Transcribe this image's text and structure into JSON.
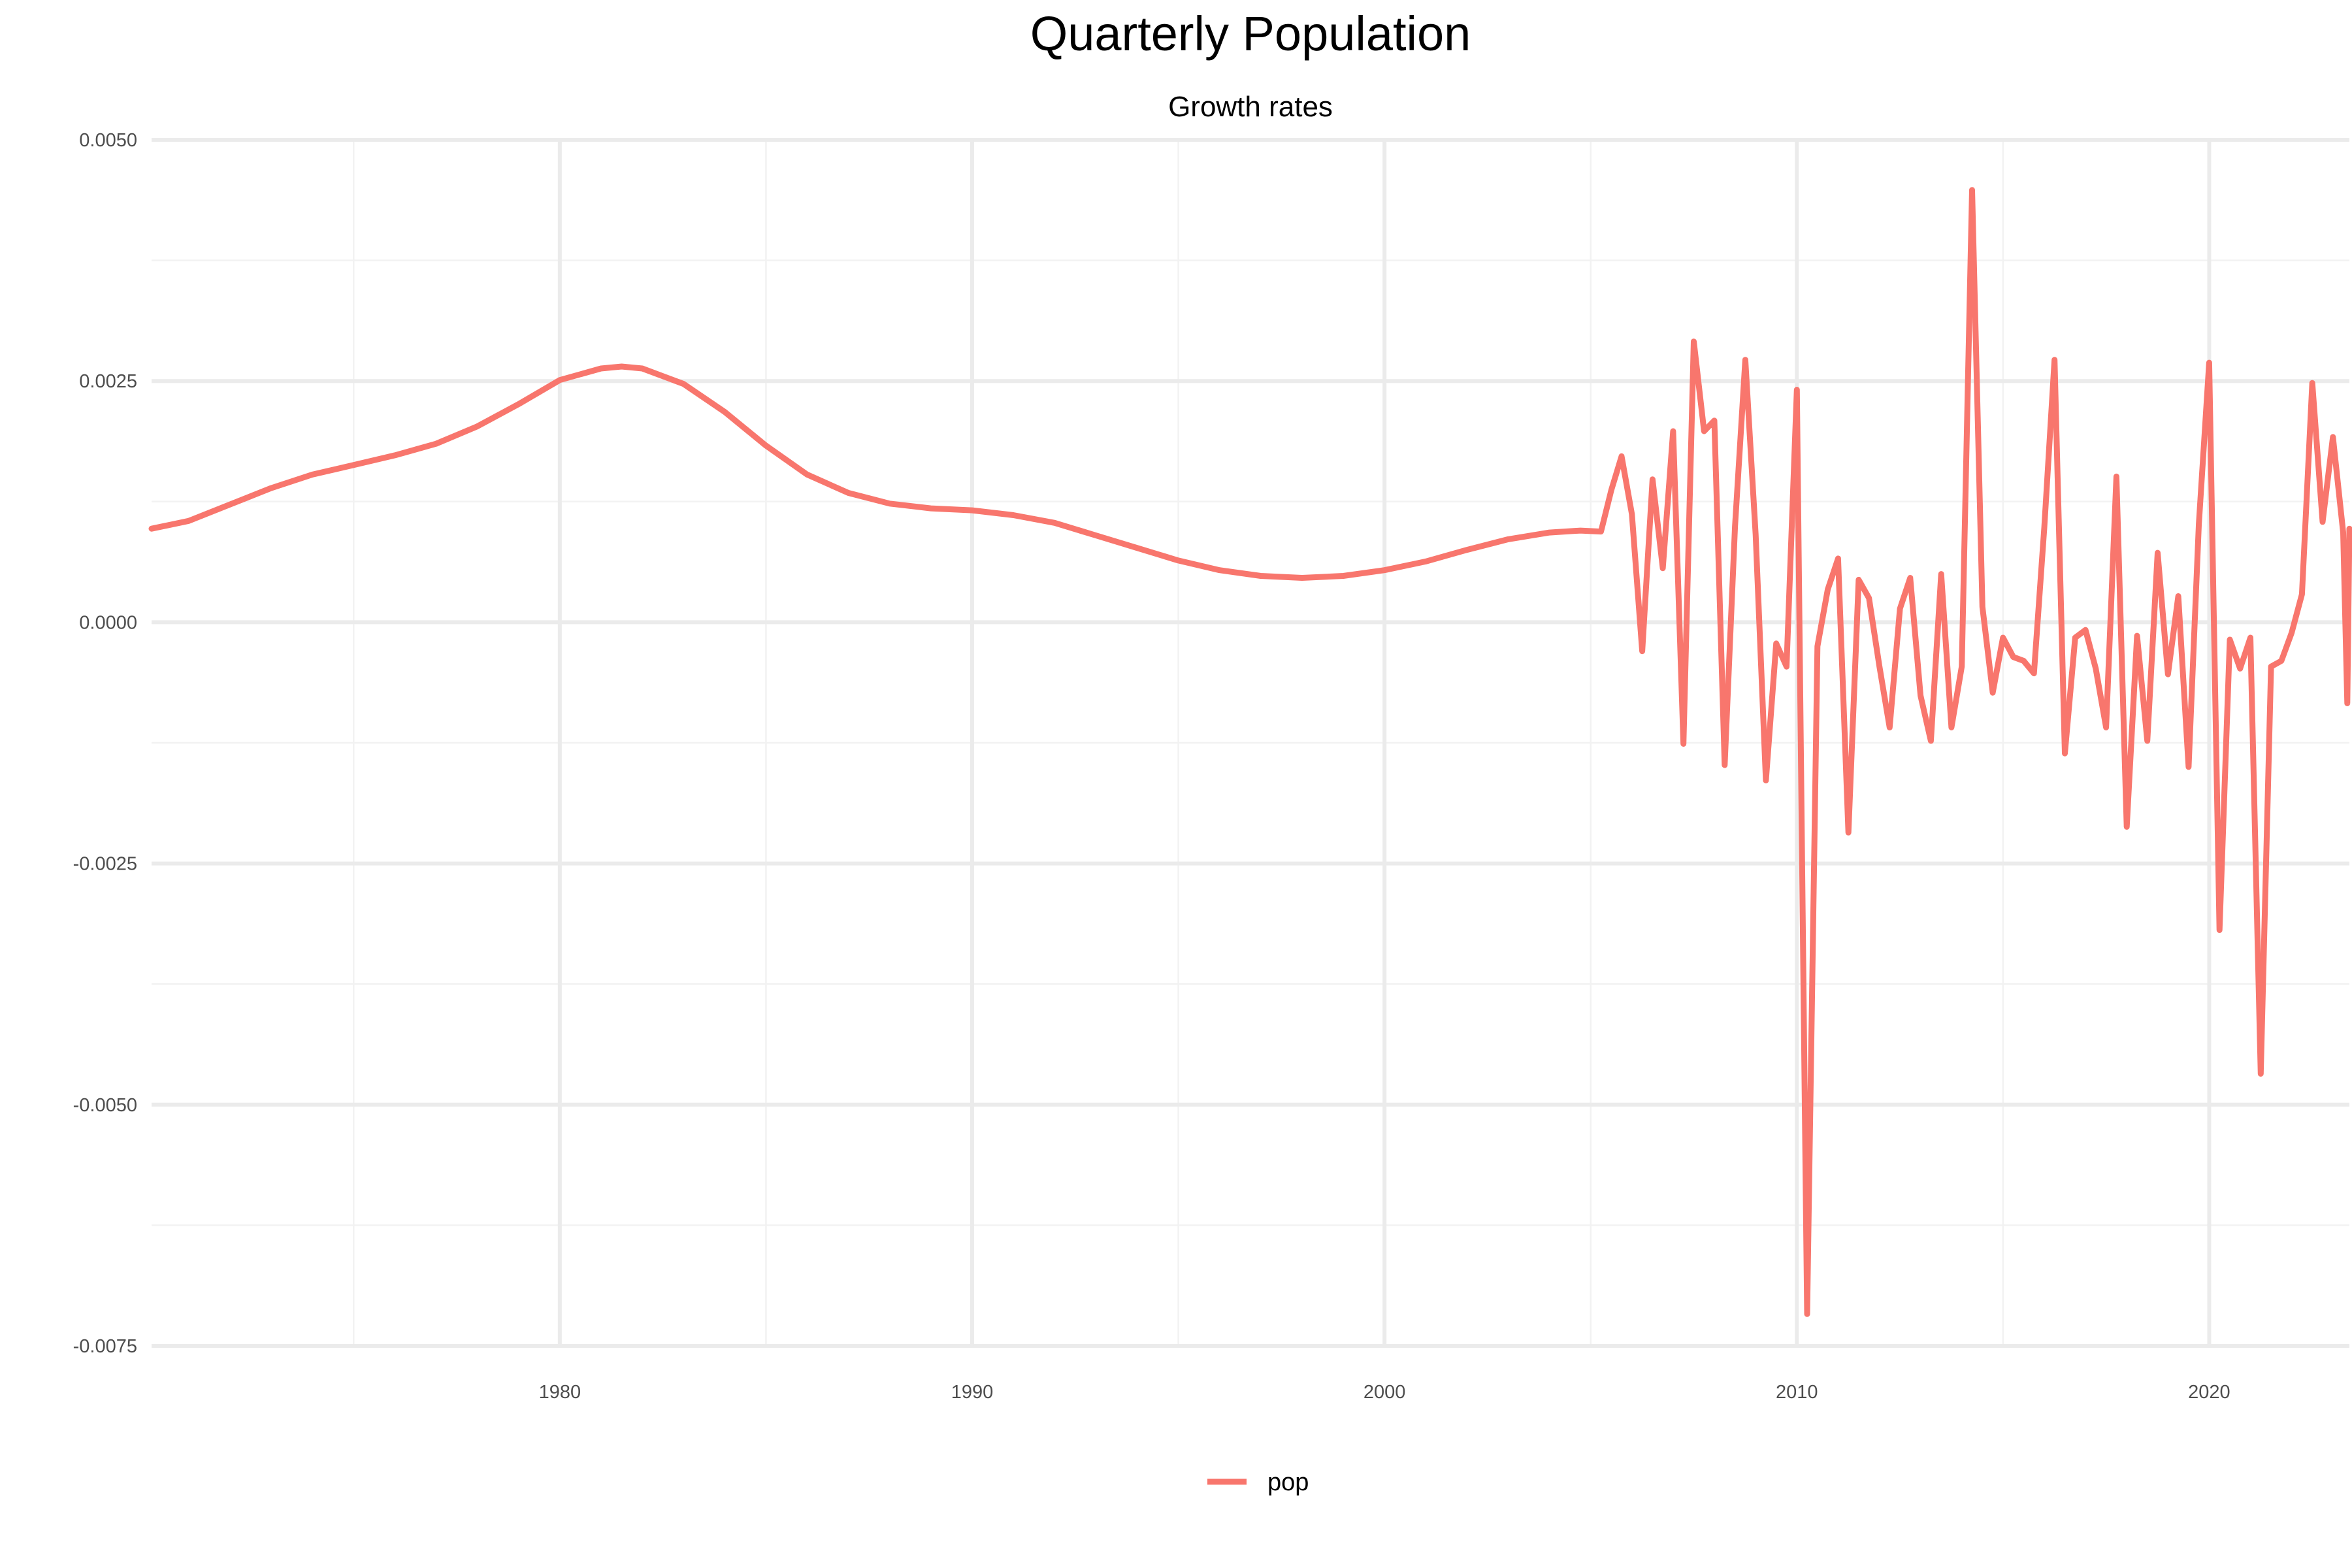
{
  "chart_data": {
    "type": "line",
    "title": "Quarterly Population",
    "subtitle": "Growth rates",
    "xlabel": "",
    "ylabel": "",
    "xlim": [
      1970.1,
      2023.4
    ],
    "ylim": [
      -0.0075,
      0.005
    ],
    "x_ticks": [
      {
        "value": 1980,
        "label": "1980"
      },
      {
        "value": 1990,
        "label": "1990"
      },
      {
        "value": 2000,
        "label": "2000"
      },
      {
        "value": 2010,
        "label": "2010"
      },
      {
        "value": 2020,
        "label": "2020"
      }
    ],
    "x_minor": [
      1975,
      1985,
      1995,
      2005,
      2015
    ],
    "y_ticks": [
      {
        "value": 0.005,
        "label": "0.0050"
      },
      {
        "value": 0.0025,
        "label": "0.0025"
      },
      {
        "value": 0.0,
        "label": "0.0000"
      },
      {
        "value": -0.0025,
        "label": "-0.0025"
      },
      {
        "value": -0.005,
        "label": "-0.0050"
      },
      {
        "value": -0.0075,
        "label": "-0.0075"
      }
    ],
    "y_minor": [
      0.00375,
      0.00125,
      -0.00125,
      -0.00375,
      -0.00625
    ],
    "grid": true,
    "legend": {
      "position": "bottom",
      "entries": [
        "pop"
      ]
    },
    "colors": {
      "pop": "#F8766D",
      "grid_major": "#EBEBEB",
      "grid_minor": "#F2F2F2"
    },
    "series": [
      {
        "name": "pop",
        "color": "#F8766D",
        "points": [
          [
            1970.1,
            0.00097
          ],
          [
            1971.0,
            0.00105
          ],
          [
            1972.0,
            0.00122
          ],
          [
            1973.0,
            0.00139
          ],
          [
            1974.0,
            0.00153
          ],
          [
            1975.0,
            0.00163
          ],
          [
            1976.0,
            0.00173
          ],
          [
            1977.0,
            0.00185
          ],
          [
            1978.0,
            0.00203
          ],
          [
            1979.0,
            0.00226
          ],
          [
            1980.0,
            0.00251
          ],
          [
            1981.0,
            0.00263
          ],
          [
            1981.5,
            0.00265
          ],
          [
            1982.0,
            0.00263
          ],
          [
            1983.0,
            0.00247
          ],
          [
            1984.0,
            0.00218
          ],
          [
            1985.0,
            0.00183
          ],
          [
            1986.0,
            0.00153
          ],
          [
            1987.0,
            0.00134
          ],
          [
            1988.0,
            0.00123
          ],
          [
            1989.0,
            0.00118
          ],
          [
            1990.0,
            0.00116
          ],
          [
            1991.0,
            0.00111
          ],
          [
            1992.0,
            0.00103
          ],
          [
            1993.0,
            0.0009
          ],
          [
            1994.0,
            0.00077
          ],
          [
            1995.0,
            0.00064
          ],
          [
            1996.0,
            0.00054
          ],
          [
            1997.0,
            0.00048
          ],
          [
            1998.0,
            0.00046
          ],
          [
            1999.0,
            0.00048
          ],
          [
            2000.0,
            0.00054
          ],
          [
            2001.0,
            0.00063
          ],
          [
            2002.0,
            0.00075
          ],
          [
            2003.0,
            0.00086
          ],
          [
            2004.0,
            0.00093
          ],
          [
            2004.75,
            0.00095
          ],
          [
            2005.25,
            0.00094
          ],
          [
            2005.5,
            0.00137
          ],
          [
            2005.75,
            0.00172
          ],
          [
            2006.0,
            0.00112
          ],
          [
            2006.25,
            -0.0003
          ],
          [
            2006.5,
            0.00148
          ],
          [
            2006.75,
            0.00056
          ],
          [
            2007.0,
            0.00198
          ],
          [
            2007.25,
            -0.00126
          ],
          [
            2007.5,
            0.00291
          ],
          [
            2007.75,
            0.00198
          ],
          [
            2008.0,
            0.00209
          ],
          [
            2008.25,
            -0.00148
          ],
          [
            2008.5,
            0.00099
          ],
          [
            2008.75,
            0.00272
          ],
          [
            2009.0,
            0.00091
          ],
          [
            2009.25,
            -0.00164
          ],
          [
            2009.5,
            -0.00022
          ],
          [
            2009.75,
            -0.00046
          ],
          [
            2010.0,
            0.00241
          ],
          [
            2010.25,
            -0.00717
          ],
          [
            2010.5,
            -0.00025
          ],
          [
            2010.75,
            0.00034
          ],
          [
            2011.0,
            0.00066
          ],
          [
            2011.25,
            -0.00218
          ],
          [
            2011.5,
            0.00044
          ],
          [
            2011.75,
            0.00025
          ],
          [
            2012.0,
            -0.00045
          ],
          [
            2012.25,
            -0.00109
          ],
          [
            2012.5,
            0.00014
          ],
          [
            2012.75,
            0.00046
          ],
          [
            2013.0,
            -0.00076
          ],
          [
            2013.25,
            -0.00123
          ],
          [
            2013.5,
            0.0005
          ],
          [
            2013.75,
            -0.00109
          ],
          [
            2014.0,
            -0.00046
          ],
          [
            2014.25,
            0.00448
          ],
          [
            2014.5,
            0.00016
          ],
          [
            2014.75,
            -0.00073
          ],
          [
            2015.0,
            -0.00016
          ],
          [
            2015.25,
            -0.00036
          ],
          [
            2015.5,
            -0.0004
          ],
          [
            2015.75,
            -0.00053
          ],
          [
            2016.0,
            0.00098
          ],
          [
            2016.25,
            0.00272
          ],
          [
            2016.5,
            -0.00136
          ],
          [
            2016.75,
            -0.00016
          ],
          [
            2017.0,
            -8e-05
          ],
          [
            2017.25,
            -0.00048
          ],
          [
            2017.5,
            -0.00109
          ],
          [
            2017.75,
            0.00151
          ],
          [
            2018.0,
            -0.00212
          ],
          [
            2018.25,
            -0.00014
          ],
          [
            2018.5,
            -0.00123
          ],
          [
            2018.75,
            0.00072
          ],
          [
            2019.0,
            -0.00054
          ],
          [
            2019.25,
            0.00027
          ],
          [
            2019.5,
            -0.0015
          ],
          [
            2019.75,
            0.00102
          ],
          [
            2020.0,
            0.00269
          ],
          [
            2020.25,
            -0.00319
          ],
          [
            2020.5,
            -0.00018
          ],
          [
            2020.75,
            -0.00048
          ],
          [
            2021.0,
            -0.00016
          ],
          [
            2021.25,
            -0.00468
          ],
          [
            2021.5,
            -0.00046
          ],
          [
            2021.75,
            -0.0004
          ],
          [
            2022.0,
            -0.00011
          ],
          [
            2022.25,
            0.00029
          ],
          [
            2022.5,
            0.00248
          ],
          [
            2022.75,
            0.00104
          ],
          [
            2023.0,
            0.00192
          ],
          [
            2023.25,
            0.00093
          ],
          [
            2023.35,
            -0.00084
          ],
          [
            2023.4,
            0.00097
          ]
        ]
      }
    ]
  }
}
